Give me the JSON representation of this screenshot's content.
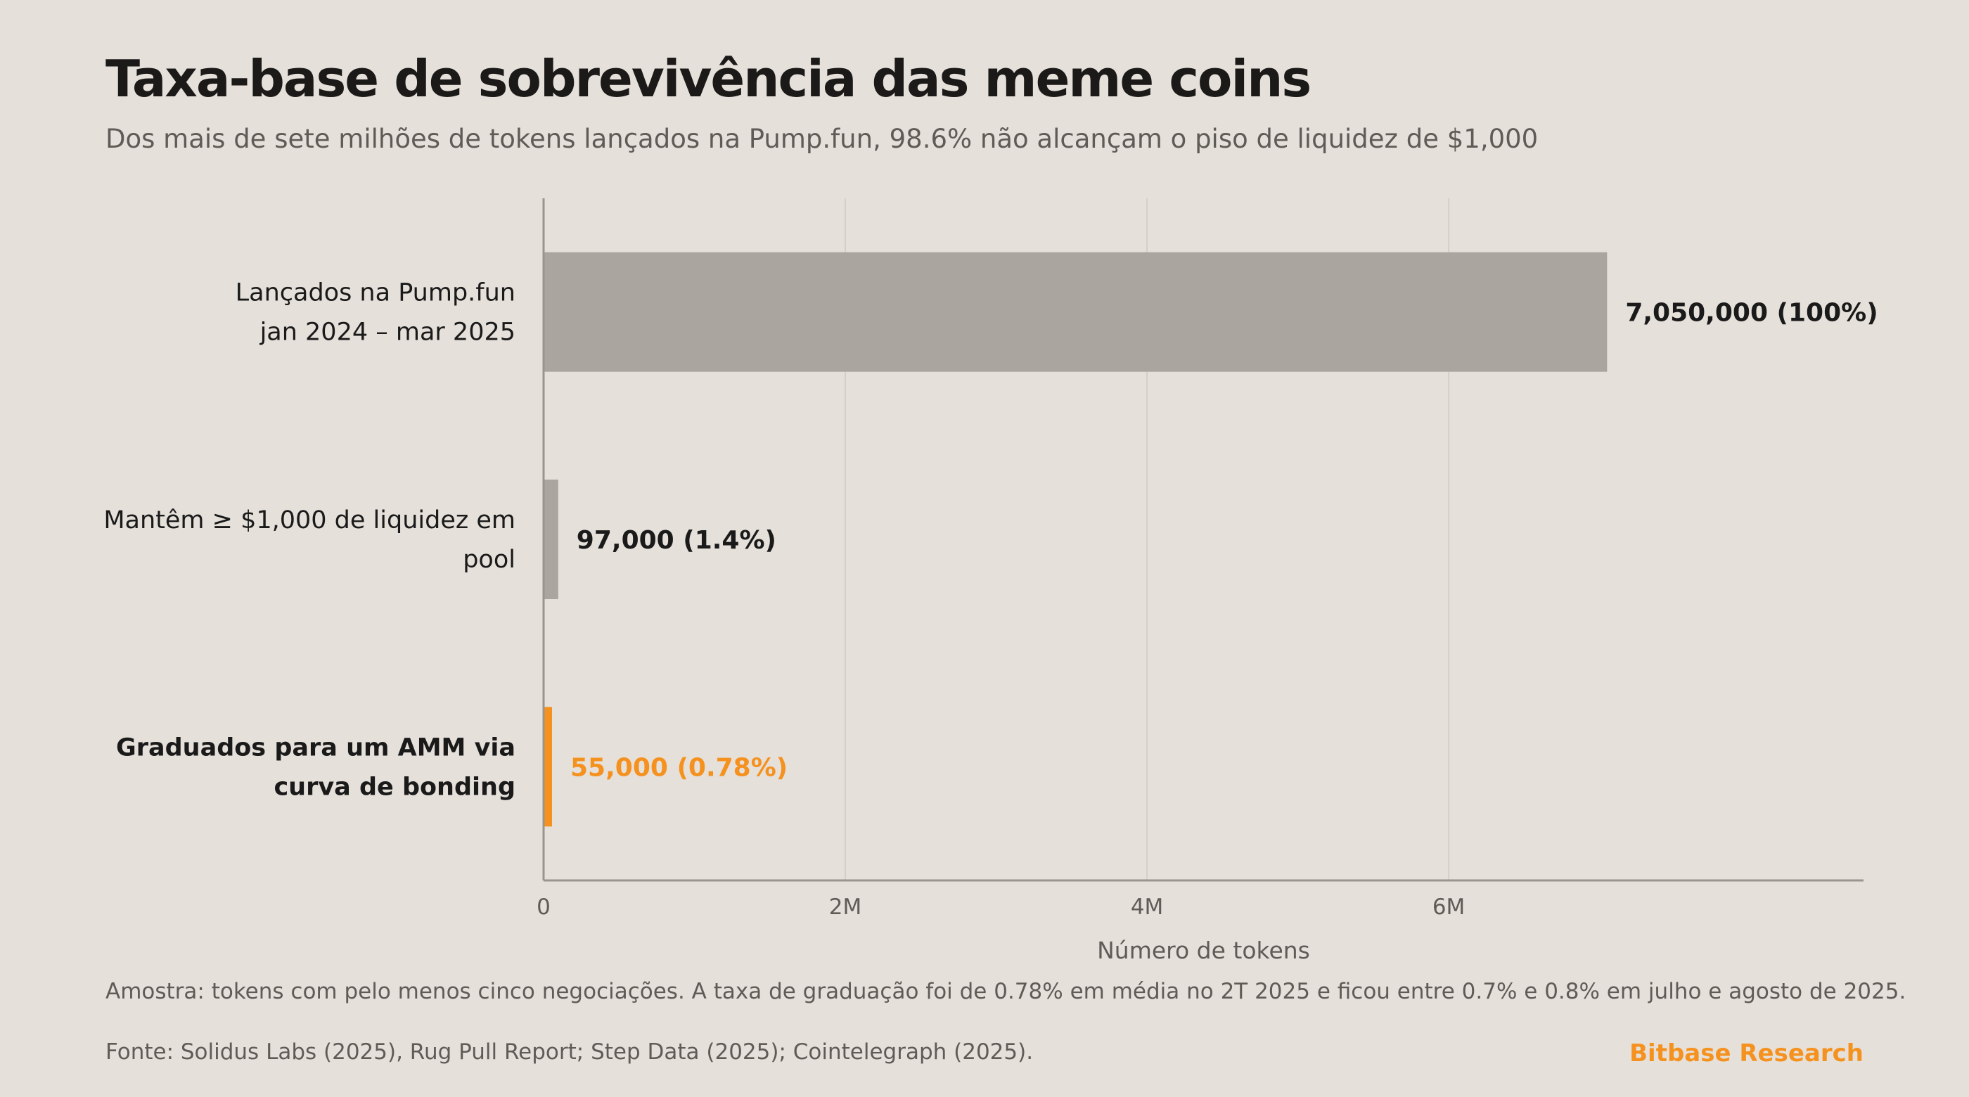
{
  "header": {
    "title": "Taxa-base de sobrevivência das meme coins",
    "subtitle": "Dos mais de sete milhões de tokens lançados na Pump.fun, 98.6% não alcançam o piso de liquidez de $1,000"
  },
  "chart_data": {
    "type": "bar",
    "orientation": "horizontal",
    "categories": [
      [
        "Lançados na Pump.fun",
        "jan 2024 – mar 2025"
      ],
      [
        "Mantêm ≥ $1,000 de liquidez em",
        "pool"
      ],
      [
        "Graduados para um AMM via",
        "curva de bonding"
      ]
    ],
    "values": [
      7050000,
      97000,
      55000
    ],
    "value_labels": [
      "7,050,000",
      "97,000",
      "55,000"
    ],
    "percent_labels": [
      "(100%)",
      "(1.4%)",
      "(0.78%)"
    ],
    "highlight": [
      false,
      false,
      true
    ],
    "xlabel": "Número de tokens",
    "xlim": [
      0,
      8750000
    ],
    "xticks": [
      0,
      2000000,
      4000000,
      6000000
    ],
    "xtick_labels": [
      "0",
      "2M",
      "4M",
      "6M"
    ],
    "grid": "vertical",
    "colors": {
      "bar": "#aaa59f",
      "highlight": "#f5921f",
      "label": "#1a1a1a",
      "grid": "#d4cfc9",
      "axis": "#9a958f",
      "tick_text": "#5f5b57"
    }
  },
  "footer": {
    "note": "Amostra: tokens com pelo menos cinco negociações. A taxa de graduação foi de 0.78% em média no 2T 2025 e ficou entre 0.7% e 0.8% em julho e agosto de 2025.",
    "source": "Fonte: Solidus Labs (2025), Rug Pull Report; Step Data (2025); Cointelegraph (2025).",
    "brand": "Bitbase Research",
    "brand_color": "#f5921f"
  }
}
